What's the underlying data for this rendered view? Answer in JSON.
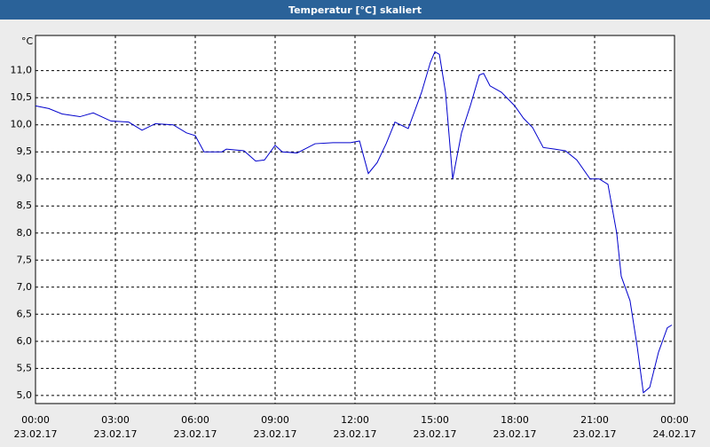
{
  "chart_data": {
    "type": "line",
    "title": "Temperatur [°C] skaliert",
    "y_label": "°C",
    "x": [
      0,
      0.5,
      1,
      1.67,
      2.17,
      2.83,
      3.5,
      4,
      4.5,
      5.17,
      5.67,
      6,
      6.33,
      7,
      7.17,
      7.83,
      8.27,
      8.6,
      9,
      9.27,
      9.83,
      10.5,
      11.17,
      11.83,
      12.17,
      12.5,
      12.83,
      13.17,
      13.5,
      14,
      14.5,
      14.83,
      15,
      15.17,
      15.4,
      15.67,
      16,
      16.33,
      16.67,
      16.83,
      17.07,
      17.5,
      18,
      18.33,
      18.67,
      19.07,
      19.5,
      19.9,
      20.33,
      20.83,
      21.17,
      21.5,
      21.83,
      22,
      22.33,
      22.6,
      22.83,
      23.07,
      23.4,
      23.73,
      23.9
    ],
    "series": [
      {
        "color": "#0000cc",
        "values": [
          10.35,
          10.3,
          10.2,
          10.15,
          10.22,
          10.07,
          10.05,
          9.9,
          10.02,
          10.0,
          9.85,
          9.8,
          9.5,
          9.5,
          9.55,
          9.52,
          9.33,
          9.35,
          9.62,
          9.5,
          9.48,
          9.65,
          9.67,
          9.67,
          9.7,
          9.1,
          9.3,
          9.65,
          10.05,
          9.93,
          10.6,
          11.15,
          11.35,
          11.3,
          10.6,
          9.0,
          9.85,
          10.35,
          10.92,
          10.95,
          10.72,
          10.6,
          10.35,
          10.12,
          9.95,
          9.58,
          9.55,
          9.52,
          9.35,
          9.0,
          9.0,
          8.9,
          8.0,
          7.2,
          6.75,
          5.9,
          5.05,
          5.15,
          5.8,
          6.25,
          6.3
        ]
      }
    ],
    "xlim": [
      0,
      24
    ],
    "ylim": [
      4.85,
      11.65
    ],
    "xticks": [
      {
        "value": 0,
        "label": "00:00"
      },
      {
        "value": 3,
        "label": "03:00"
      },
      {
        "value": 6,
        "label": "06:00"
      },
      {
        "value": 9,
        "label": "09:00"
      },
      {
        "value": 12,
        "label": "12:00"
      },
      {
        "value": 15,
        "label": "15:00"
      },
      {
        "value": 18,
        "label": "18:00"
      },
      {
        "value": 21,
        "label": "21:00"
      },
      {
        "value": 24,
        "label": "00:00"
      }
    ],
    "xtick_dates": [
      "23.02.17",
      "23.02.17",
      "23.02.17",
      "23.02.17",
      "23.02.17",
      "23.02.17",
      "23.02.17",
      "23.02.17",
      "24.02.17"
    ],
    "yticks": [
      {
        "value": 5,
        "label": "5,0"
      },
      {
        "value": 5.5,
        "label": "5,5"
      },
      {
        "value": 6,
        "label": "6,0"
      },
      {
        "value": 6.5,
        "label": "6,5"
      },
      {
        "value": 7,
        "label": "7,0"
      },
      {
        "value": 7.5,
        "label": "7,5"
      },
      {
        "value": 8,
        "label": "8,0"
      },
      {
        "value": 8.5,
        "label": "8,5"
      },
      {
        "value": 9,
        "label": "9,0"
      },
      {
        "value": 9.5,
        "label": "9,5"
      },
      {
        "value": 10,
        "label": "10,0"
      },
      {
        "value": 10.5,
        "label": "10,5"
      },
      {
        "value": 11,
        "label": "11,0"
      }
    ],
    "grid": true
  }
}
